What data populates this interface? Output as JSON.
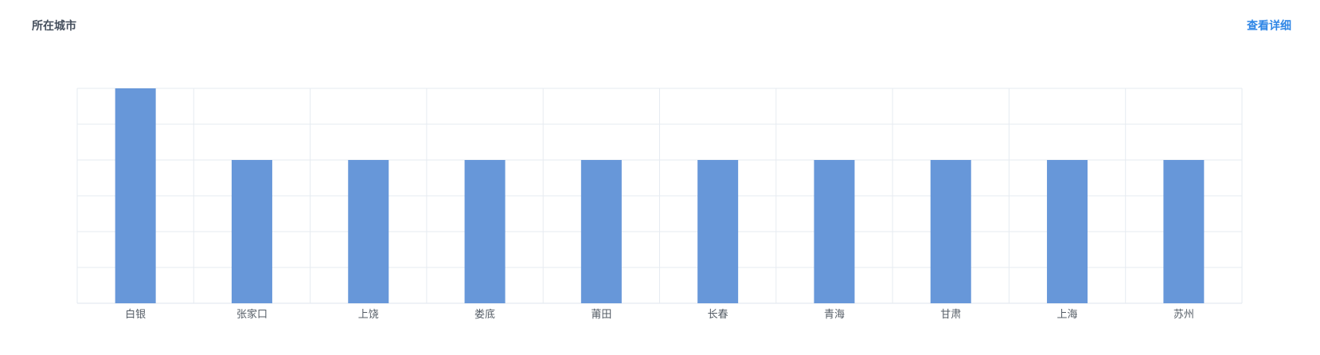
{
  "header": {
    "title": "所在城市",
    "detail_link": "查看详细"
  },
  "chart_data": {
    "type": "bar",
    "categories": [
      "白银",
      "张家口",
      "上饶",
      "娄底",
      "莆田",
      "长春",
      "青海",
      "甘肃",
      "上海",
      "苏州"
    ],
    "values": [
      3,
      2,
      2,
      2,
      2,
      2,
      2,
      2,
      2,
      2
    ],
    "ylim": [
      0,
      3
    ],
    "y_gridlines": 6,
    "grid": true,
    "legend": "none",
    "colors": {
      "bar": "#6797d9",
      "grid": "#e6ebf1",
      "axis": "#dfe5ec"
    }
  }
}
